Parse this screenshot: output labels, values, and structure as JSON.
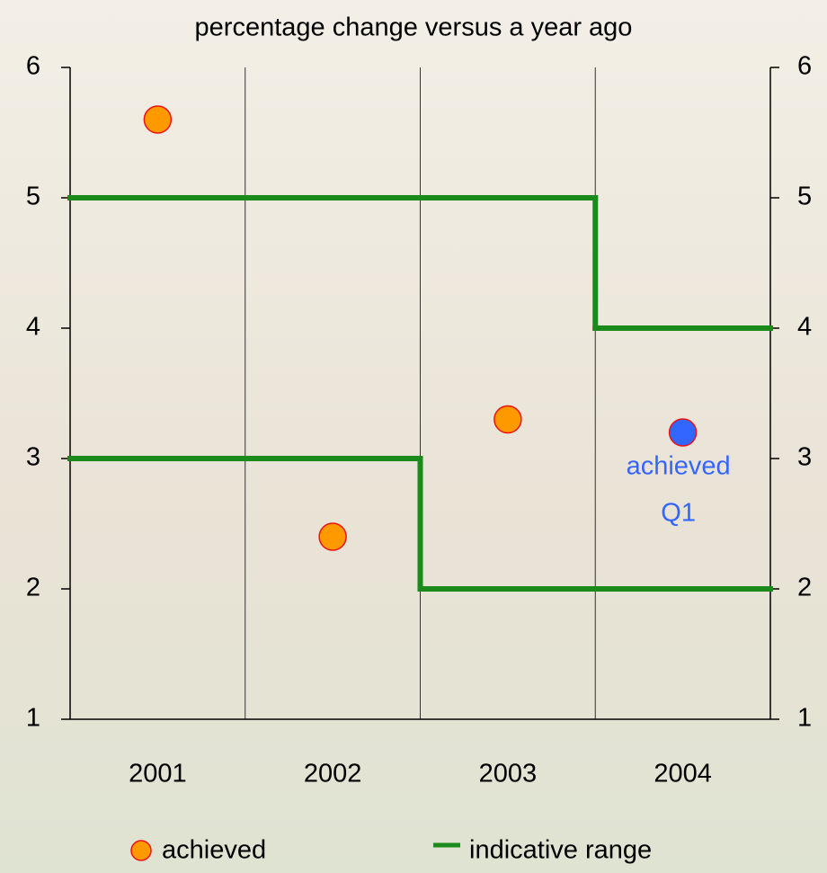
{
  "chart_data": {
    "type": "range-dots",
    "title": "percentage change versus a year ago",
    "categories": [
      "2001",
      "2002",
      "2003",
      "2004"
    ],
    "series": [
      {
        "name": "achieved",
        "color": "#ff9900",
        "values": [
          5.6,
          2.4,
          3.3,
          null
        ]
      },
      {
        "name": "indicative range",
        "color": "#1a8a1a",
        "upper": [
          5,
          5,
          5,
          4
        ],
        "lower": [
          3,
          3,
          2,
          2
        ]
      }
    ],
    "annotation": {
      "lines": [
        "achieved",
        "Q1"
      ],
      "category": 3,
      "value": 3.2,
      "color": "#3366ff"
    },
    "ylim": [
      1,
      6
    ],
    "yticks": [
      1,
      2,
      3,
      4,
      5,
      6
    ],
    "y2lim": [
      1,
      6
    ],
    "y2ticks": [
      1,
      2,
      3,
      4,
      5,
      6
    ],
    "grid": true
  }
}
